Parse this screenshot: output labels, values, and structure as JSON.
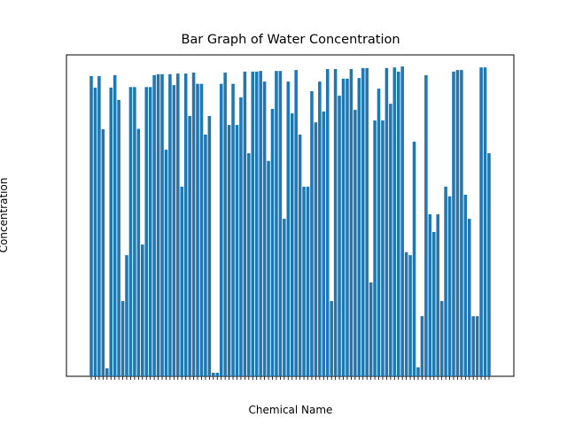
{
  "chart_data": {
    "type": "bar",
    "title": "Bar Graph of Water Concentration",
    "x_label": "Chemical Name",
    "y_label": "Concentration",
    "color": "#1f77b4",
    "ylim": [
      0,
      100
    ],
    "values": [
      93.4,
      89.8,
      93.4,
      76.9,
      2.5,
      89.8,
      93.7,
      86,
      23.4,
      37.7,
      90,
      90,
      77,
      41,
      90,
      90,
      93.7,
      94,
      94,
      70.5,
      94,
      90.6,
      94.2,
      59,
      94.2,
      81,
      94.5,
      91,
      91,
      75.2,
      81,
      1.1,
      1.1,
      91,
      94.5,
      78.2,
      91,
      78.2,
      86.8,
      94.8,
      69.4,
      94.8,
      94.8,
      95,
      91.7,
      67,
      83.2,
      95,
      95,
      49,
      91.7,
      81.8,
      95.3,
      75.2,
      59,
      59,
      88.7,
      79,
      91.7,
      82.4,
      95.6,
      23.4,
      95.6,
      87.3,
      92.6,
      92.6,
      95.6,
      82.9,
      92.8,
      95.9,
      95.9,
      29.2,
      79.6,
      89.5,
      79.6,
      95.9,
      84.8,
      96.1,
      94.8,
      96.4,
      38.6,
      37.7,
      73,
      2.8,
      18.7,
      93.7,
      50.4,
      44.9,
      50.4,
      23.4,
      59,
      56,
      94.8,
      95.3,
      95.3,
      56.5,
      49,
      18.7,
      18.7,
      96.1,
      96.1,
      69.4
    ]
  }
}
